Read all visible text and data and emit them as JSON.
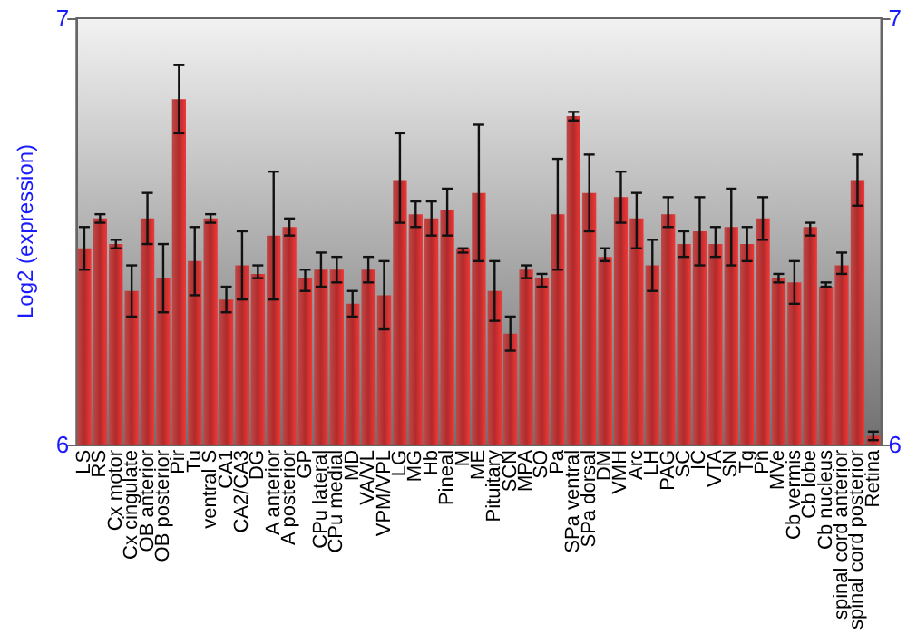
{
  "chart_data": {
    "type": "bar",
    "ylabel": "Log2 (expression)",
    "categories": [
      "LS",
      "RS",
      "Cx motor",
      "Cx cingulate",
      "OB anterior",
      "OB posterior",
      "Pir",
      "Tu",
      "ventral S",
      "CA1",
      "CA2/CA3",
      "DG",
      "A anterior",
      "A posterior",
      "GP",
      "CPu lateral",
      "CPu medial",
      "MD",
      "VA/VL",
      "VPM/VPL",
      "LG",
      "MG",
      "Hb",
      "Pineal",
      "M",
      "ME",
      "Pituitary",
      "SCN",
      "MPA",
      "SO",
      "Pa",
      "SPa ventral",
      "SPa dorsal",
      "DM",
      "VMH",
      "Arc",
      "LH",
      "PAG",
      "SC",
      "IC",
      "VTA",
      "SN",
      "Tg",
      "Pn",
      "MVe",
      "Cb vermis",
      "Cb lobe",
      "Cb nucleus",
      "spinal cord anterior",
      "spinal cord posterior",
      "Retina"
    ],
    "values": [
      6.46,
      6.53,
      6.47,
      6.36,
      6.53,
      6.39,
      6.81,
      6.43,
      6.53,
      6.34,
      6.42,
      6.4,
      6.49,
      6.51,
      6.39,
      6.41,
      6.41,
      6.33,
      6.41,
      6.35,
      6.62,
      6.54,
      6.53,
      6.55,
      6.46,
      6.59,
      6.36,
      6.26,
      6.41,
      6.39,
      6.54,
      6.77,
      6.59,
      6.44,
      6.58,
      6.53,
      6.42,
      6.54,
      6.47,
      6.5,
      6.47,
      6.51,
      6.47,
      6.53,
      6.39,
      6.38,
      6.51,
      6.37,
      6.42,
      6.62,
      6.02
    ],
    "errors": [
      [
        6.41,
        6.51
      ],
      [
        6.52,
        6.54
      ],
      [
        6.46,
        6.48
      ],
      [
        6.3,
        6.42
      ],
      [
        6.47,
        6.59
      ],
      [
        6.31,
        6.47
      ],
      [
        6.73,
        6.89
      ],
      [
        6.35,
        6.51
      ],
      [
        6.52,
        6.54
      ],
      [
        6.31,
        6.37
      ],
      [
        6.34,
        6.5
      ],
      [
        6.39,
        6.42
      ],
      [
        6.34,
        6.64
      ],
      [
        6.49,
        6.53
      ],
      [
        6.36,
        6.41
      ],
      [
        6.37,
        6.45
      ],
      [
        6.38,
        6.44
      ],
      [
        6.3,
        6.36
      ],
      [
        6.38,
        6.44
      ],
      [
        6.27,
        6.43
      ],
      [
        6.52,
        6.73
      ],
      [
        6.51,
        6.57
      ],
      [
        6.49,
        6.57
      ],
      [
        6.49,
        6.6
      ],
      [
        6.45,
        6.46
      ],
      [
        6.43,
        6.75
      ],
      [
        6.29,
        6.43
      ],
      [
        6.22,
        6.3
      ],
      [
        6.39,
        6.42
      ],
      [
        6.37,
        6.4
      ],
      [
        6.41,
        6.67
      ],
      [
        6.76,
        6.78
      ],
      [
        6.5,
        6.68
      ],
      [
        6.43,
        6.46
      ],
      [
        6.52,
        6.64
      ],
      [
        6.46,
        6.59
      ],
      [
        6.36,
        6.48
      ],
      [
        6.51,
        6.58
      ],
      [
        6.44,
        6.5
      ],
      [
        6.42,
        6.58
      ],
      [
        6.44,
        6.51
      ],
      [
        6.42,
        6.6
      ],
      [
        6.43,
        6.51
      ],
      [
        6.48,
        6.58
      ],
      [
        6.38,
        6.4
      ],
      [
        6.33,
        6.43
      ],
      [
        6.49,
        6.52
      ],
      [
        6.37,
        6.38
      ],
      [
        6.4,
        6.45
      ],
      [
        6.56,
        6.68
      ],
      [
        6.01,
        6.03
      ]
    ],
    "color": "#b22a2a",
    "ylim": [
      6,
      7
    ],
    "yticks": [
      6,
      7
    ],
    "y2lim": [
      6,
      7
    ],
    "y2ticks": [
      6,
      7
    ],
    "grid": false
  }
}
